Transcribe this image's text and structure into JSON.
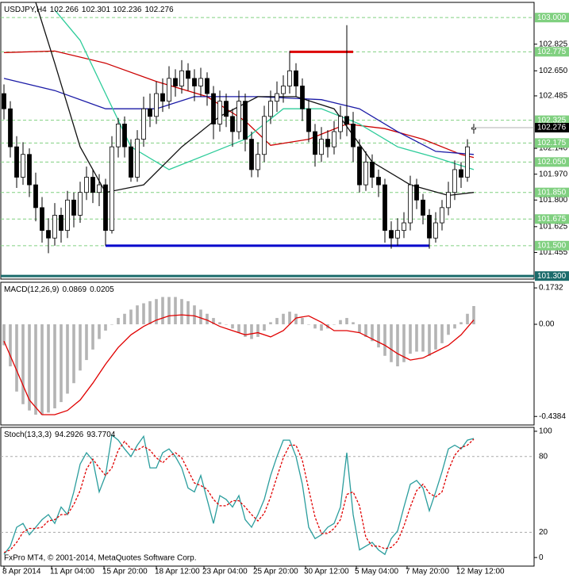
{
  "chart_data": [
    {
      "type": "candlestick",
      "title": "USDJPY,H4",
      "xlim": [
        -0.5,
        83.5
      ],
      "ylim": [
        101.28,
        103.1
      ],
      "candle_color": "#000000",
      "candles": [
        [
          102.5,
          102.56,
          102.33,
          102.4
        ],
        [
          102.4,
          102.45,
          102.08,
          102.15
        ],
        [
          102.15,
          102.22,
          101.88,
          101.95
        ],
        [
          101.95,
          102.18,
          101.9,
          102.1
        ],
        [
          102.1,
          102.14,
          101.82,
          101.9
        ],
        [
          101.9,
          101.98,
          101.66,
          101.75
        ],
        [
          101.75,
          101.82,
          101.52,
          101.6
        ],
        [
          101.6,
          101.68,
          101.45,
          101.55
        ],
        [
          101.55,
          101.78,
          101.5,
          101.7
        ],
        [
          101.7,
          101.75,
          101.52,
          101.6
        ],
        [
          101.6,
          101.86,
          101.55,
          101.8
        ],
        [
          101.8,
          101.85,
          101.62,
          101.7
        ],
        [
          101.7,
          101.92,
          101.65,
          101.85
        ],
        [
          101.85,
          102.02,
          101.8,
          101.95
        ],
        [
          101.95,
          102.0,
          101.78,
          101.85
        ],
        [
          101.85,
          101.97,
          101.76,
          101.9
        ],
        [
          101.9,
          101.94,
          101.5,
          101.6
        ],
        [
          101.6,
          102.22,
          101.58,
          102.15
        ],
        [
          102.15,
          102.34,
          102.08,
          102.3
        ],
        [
          102.3,
          102.35,
          102.08,
          102.15
        ],
        [
          102.15,
          102.2,
          101.92,
          101.95
        ],
        [
          101.95,
          102.26,
          101.92,
          102.2
        ],
        [
          102.2,
          102.48,
          102.15,
          102.4
        ],
        [
          102.4,
          102.5,
          102.28,
          102.35
        ],
        [
          102.35,
          102.58,
          102.3,
          102.5
        ],
        [
          102.5,
          102.6,
          102.38,
          102.45
        ],
        [
          102.45,
          102.68,
          102.4,
          102.6
        ],
        [
          102.6,
          102.66,
          102.48,
          102.55
        ],
        [
          102.55,
          102.72,
          102.5,
          102.65
        ],
        [
          102.65,
          102.7,
          102.52,
          102.6
        ],
        [
          102.6,
          102.66,
          102.45,
          102.55
        ],
        [
          102.55,
          102.67,
          102.48,
          102.6
        ],
        [
          102.6,
          102.64,
          102.42,
          102.5
        ],
        [
          102.5,
          102.55,
          102.2,
          102.3
        ],
        [
          102.3,
          102.52,
          102.25,
          102.45
        ],
        [
          102.45,
          102.5,
          102.28,
          102.35
        ],
        [
          102.35,
          102.4,
          102.15,
          102.25
        ],
        [
          102.25,
          102.52,
          102.2,
          102.45
        ],
        [
          102.45,
          102.5,
          102.12,
          102.2
        ],
        [
          102.2,
          102.25,
          101.95,
          102.0
        ],
        [
          102.0,
          102.18,
          101.95,
          102.1
        ],
        [
          102.1,
          102.42,
          102.05,
          102.35
        ],
        [
          102.35,
          102.52,
          102.3,
          102.45
        ],
        [
          102.45,
          102.58,
          102.38,
          102.5
        ],
        [
          102.5,
          102.62,
          102.44,
          102.55
        ],
        [
          102.55,
          102.78,
          102.5,
          102.65
        ],
        [
          102.65,
          102.7,
          102.48,
          102.55
        ],
        [
          102.55,
          102.6,
          102.32,
          102.4
        ],
        [
          102.4,
          102.46,
          102.18,
          102.25
        ],
        [
          102.25,
          102.3,
          102.02,
          102.1
        ],
        [
          102.1,
          102.28,
          102.05,
          102.2
        ],
        [
          102.2,
          102.26,
          102.08,
          102.15
        ],
        [
          102.15,
          102.32,
          102.1,
          102.25
        ],
        [
          102.25,
          102.42,
          102.2,
          102.35
        ],
        [
          102.35,
          102.95,
          102.22,
          102.3
        ],
        [
          102.3,
          102.38,
          102.05,
          102.15
        ],
        [
          102.15,
          102.2,
          101.85,
          101.9
        ],
        [
          101.9,
          102.12,
          101.86,
          102.05
        ],
        [
          102.05,
          102.1,
          101.88,
          101.95
        ],
        [
          101.95,
          102.0,
          101.82,
          101.9
        ],
        [
          101.9,
          101.94,
          101.52,
          101.6
        ],
        [
          101.6,
          101.66,
          101.48,
          101.55
        ],
        [
          101.55,
          101.68,
          101.5,
          101.6
        ],
        [
          101.6,
          101.72,
          101.55,
          101.65
        ],
        [
          101.65,
          101.96,
          101.6,
          101.9
        ],
        [
          101.9,
          101.94,
          101.74,
          101.8
        ],
        [
          101.8,
          101.84,
          101.64,
          101.7
        ],
        [
          101.7,
          101.74,
          101.48,
          101.55
        ],
        [
          101.55,
          101.72,
          101.52,
          101.65
        ],
        [
          101.65,
          101.8,
          101.6,
          101.75
        ],
        [
          101.75,
          101.92,
          101.7,
          101.85
        ],
        [
          101.85,
          102.06,
          101.8,
          102.0
        ],
        [
          102.0,
          102.05,
          101.88,
          101.95
        ],
        [
          101.95,
          102.2,
          101.92,
          102.15
        ],
        [
          102.266,
          102.301,
          102.236,
          102.276
        ]
      ],
      "series": [
        {
          "color": "#cc0000",
          "x": [
            0,
            8,
            16,
            24,
            32,
            38,
            42,
            48,
            54,
            60,
            66,
            72,
            74
          ],
          "values": [
            102.77,
            102.78,
            102.7,
            102.58,
            102.48,
            102.32,
            102.16,
            102.2,
            102.3,
            102.27,
            102.2,
            102.1,
            102.08
          ]
        },
        {
          "color": "#1a1aa6",
          "x": [
            0,
            8,
            16,
            24,
            30,
            40,
            50,
            56,
            62,
            68,
            74
          ],
          "values": [
            102.6,
            102.52,
            102.4,
            102.4,
            102.48,
            102.48,
            102.46,
            102.4,
            102.25,
            102.12,
            102.1
          ]
        },
        {
          "color": "#2ecc9a",
          "x": [
            8,
            12,
            16,
            20,
            26,
            32,
            38,
            44,
            50,
            56,
            62,
            68,
            74
          ],
          "values": [
            103.05,
            102.85,
            102.5,
            102.15,
            102.0,
            102.1,
            102.2,
            102.4,
            102.4,
            102.3,
            102.15,
            102.08,
            102.0
          ]
        },
        {
          "color": "#111111",
          "x": [
            5,
            8,
            12,
            16,
            22,
            28,
            34,
            40,
            46,
            52,
            58,
            64,
            70,
            74
          ],
          "values": [
            103.1,
            102.7,
            102.15,
            101.85,
            101.9,
            102.15,
            102.35,
            102.48,
            102.48,
            102.4,
            102.05,
            101.9,
            101.83,
            101.85
          ]
        }
      ],
      "segments": [
        {
          "value": 101.5,
          "from": 16,
          "to": 67,
          "color": "#0000cc"
        },
        {
          "value": 102.775,
          "from": 45,
          "to": 55,
          "color": "#dd0000"
        }
      ],
      "yticks": [
        {
          "value": 102.825,
          "label": "102.825"
        },
        {
          "value": 102.65,
          "label": "102.650"
        },
        {
          "value": 102.485,
          "label": "102.485"
        },
        {
          "value": 102.14,
          "label": "102.140"
        },
        {
          "value": 101.97,
          "label": "101.970"
        },
        {
          "value": 101.8,
          "label": "101.800"
        },
        {
          "value": 101.625,
          "label": "101.625"
        },
        {
          "value": 101.455,
          "label": "101.455"
        }
      ],
      "levels": [
        {
          "value": 103,
          "label": "103.000",
          "color": "#80d080"
        },
        {
          "value": 102.775,
          "label": "102.775",
          "color": "#80d080"
        },
        {
          "value": 102.325,
          "label": "102.325",
          "color": "#80d080"
        },
        {
          "value": 102.175,
          "label": "102.175",
          "color": "#80d080"
        },
        {
          "value": 102.05,
          "label": "102.050",
          "color": "#80d080"
        },
        {
          "value": 101.85,
          "label": "101.850",
          "color": "#80d080"
        },
        {
          "value": 101.675,
          "label": "101.675",
          "color": "#80d080"
        },
        {
          "value": 101.5,
          "label": "101.500",
          "color": "#80d080"
        },
        {
          "value": 101.3,
          "label": "101.300",
          "color": "#1b6b6b",
          "style": "solid"
        }
      ]
    },
    {
      "type": "bar",
      "title": "MACD(12,26,9)",
      "xlim": [
        -0.5,
        83.5
      ],
      "ylim": [
        -0.479,
        0.2
      ],
      "color": "#b4b4b4",
      "values": [
        -0.1,
        -0.2,
        -0.32,
        -0.38,
        -0.41,
        -0.43,
        -0.43,
        -0.42,
        -0.4,
        -0.37,
        -0.33,
        -0.28,
        -0.22,
        -0.17,
        -0.12,
        -0.07,
        -0.03,
        0.0,
        0.03,
        0.05,
        0.07,
        0.09,
        0.1,
        0.11,
        0.12,
        0.13,
        0.13,
        0.13,
        0.12,
        0.11,
        0.09,
        0.07,
        0.05,
        0.03,
        0.01,
        0.0,
        -0.02,
        -0.04,
        -0.06,
        -0.07,
        -0.06,
        -0.03,
        0.01,
        0.03,
        0.05,
        0.06,
        0.05,
        0.03,
        0.0,
        -0.02,
        -0.03,
        -0.02,
        0.0,
        0.02,
        0.03,
        0.01,
        -0.04,
        -0.06,
        -0.08,
        -0.11,
        -0.15,
        -0.18,
        -0.2,
        -0.18,
        -0.14,
        -0.13,
        -0.13,
        -0.15,
        -0.12,
        -0.09,
        -0.05,
        -0.02,
        0.01,
        0.05,
        0.0869
      ],
      "series": [
        {
          "color": "#e00000",
          "x": [
            0,
            2,
            4,
            6,
            8,
            10,
            12,
            14,
            16,
            18,
            20,
            22,
            24,
            26,
            28,
            30,
            32,
            34,
            36,
            38,
            40,
            42,
            44,
            46,
            48,
            50,
            52,
            54,
            56,
            58,
            60,
            62,
            64,
            66,
            68,
            70,
            72,
            74
          ],
          "values": [
            -0.08,
            -0.22,
            -0.36,
            -0.43,
            -0.43,
            -0.41,
            -0.36,
            -0.28,
            -0.19,
            -0.11,
            -0.05,
            -0.01,
            0.02,
            0.04,
            0.045,
            0.04,
            0.02,
            -0.01,
            -0.03,
            -0.05,
            -0.04,
            -0.06,
            -0.03,
            0.03,
            0.04,
            0.01,
            -0.03,
            -0.03,
            -0.04,
            -0.07,
            -0.1,
            -0.14,
            -0.17,
            -0.16,
            -0.13,
            -0.1,
            -0.05,
            0.0205
          ]
        }
      ],
      "yticks": [
        0.1732,
        {
          "value": 0,
          "label": "0.00"
        },
        -0.4384
      ]
    },
    {
      "type": "line",
      "title": "Stoch(13,3,3)",
      "annotation": "FxPro MT4, © 2001-2014, MetaQuotes Software Corp.",
      "xlim": [
        -0.5,
        83.5
      ],
      "ylim": [
        -6.8,
        103.1
      ],
      "series": [
        {
          "color": "#2a9d9d",
          "values": [
            2.5,
            9,
            24,
            27,
            18,
            24,
            30,
            34,
            27,
            40,
            34,
            52,
            74,
            83,
            77,
            52,
            65,
            97,
            93,
            86,
            80,
            89,
            96,
            71,
            71,
            83,
            86,
            80,
            71,
            55,
            52,
            65,
            46,
            27,
            49,
            46,
            40,
            49,
            30,
            24,
            34,
            46,
            65,
            80,
            93,
            93,
            80,
            58,
            24,
            15,
            18,
            24,
            27,
            40,
            83,
            34,
            6,
            9,
            12,
            6,
            2.5,
            15,
            21,
            40,
            58,
            61,
            55,
            37,
            52,
            68,
            86,
            89,
            86,
            93,
            94.2926
          ]
        },
        {
          "color": "#e00000",
          "dashed": true,
          "values": [
            4,
            6,
            12,
            20,
            23,
            23,
            24,
            29,
            30,
            34,
            34,
            42,
            53,
            70,
            78,
            71,
            65,
            71,
            85,
            92,
            86,
            85,
            88,
            85,
            79,
            75,
            80,
            83,
            79,
            69,
            59,
            57,
            54,
            46,
            41,
            41,
            45,
            45,
            40,
            34,
            29,
            35,
            48,
            64,
            79,
            89,
            89,
            77,
            54,
            32,
            19,
            19,
            23,
            30,
            50,
            52,
            41,
            16,
            9,
            9,
            7,
            8,
            13,
            25,
            40,
            53,
            58,
            51,
            48,
            52,
            69,
            81,
            87,
            89,
            93.7704
          ]
        }
      ],
      "yticks": [
        0,
        100
      ],
      "levels": [
        {
          "value": 80,
          "color": "#aaaaaa"
        },
        {
          "value": 20,
          "color": "#aaaaaa"
        }
      ],
      "xticks": [
        {
          "value": 0,
          "label": "8 Apr 2014"
        },
        {
          "value": 7.5,
          "label": "11 Apr 04:00"
        },
        {
          "value": 15.75,
          "label": "15 Apr 20:00"
        },
        {
          "value": 24,
          "label": "18 Apr 12:00"
        },
        {
          "value": 31.5,
          "label": "23 Apr 04:00"
        },
        {
          "value": 39.5,
          "label": "25 Apr 20:00"
        },
        {
          "value": 47.5,
          "label": "30 Apr 12:00"
        },
        {
          "value": 55.5,
          "label": "5 May 04:00"
        },
        {
          "value": 63.5,
          "label": "7 May 20:00"
        },
        {
          "value": 71.5,
          "label": "12 May 12:00"
        }
      ]
    }
  ]
}
